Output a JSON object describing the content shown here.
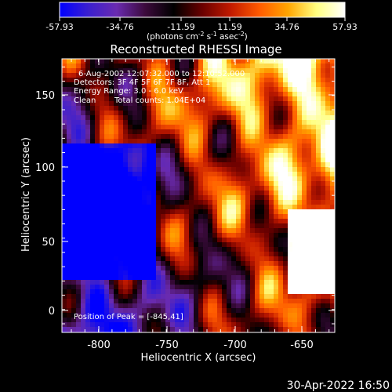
{
  "colorbar": {
    "ticks": [
      "-57.93",
      "-34.76",
      "-11.59",
      "11.59",
      "34.76",
      "57.93"
    ],
    "units_parts": [
      "(photons cm",
      "-2",
      " s",
      "-1",
      " asec",
      "-2",
      ")"
    ]
  },
  "title": "Reconstructed RHESSI Image",
  "info": {
    "line1": "6-Aug-2002 12:07:32.000 to 12:10:52.000",
    "line2": "Detectors: 3F 4F 5F 6F 7F 8F, Att 1",
    "line3": "Energy Range: 3.0 - 6.0 keV",
    "line4_a": "Clean",
    "line4_b": "Total counts: 1.04E+04",
    "peak": "Position of Peak = [-845,41]"
  },
  "axes": {
    "xlabel": "Heliocentric X (arcsec)",
    "ylabel": "Heliocentric Y (arcsec)",
    "xticks": [
      "-800",
      "-750",
      "-700",
      "-650"
    ],
    "yticks": [
      "0",
      "50",
      "100",
      "150"
    ]
  },
  "timestamp": "30-Apr-2022 16:50",
  "colormap": [
    "#0000ff",
    "#3a1fd0",
    "#6a2bb0",
    "#3c0a3c",
    "#000000",
    "#6a0000",
    "#c21a00",
    "#ff5a00",
    "#ffa500",
    "#ffff80",
    "#ffffff"
  ]
}
